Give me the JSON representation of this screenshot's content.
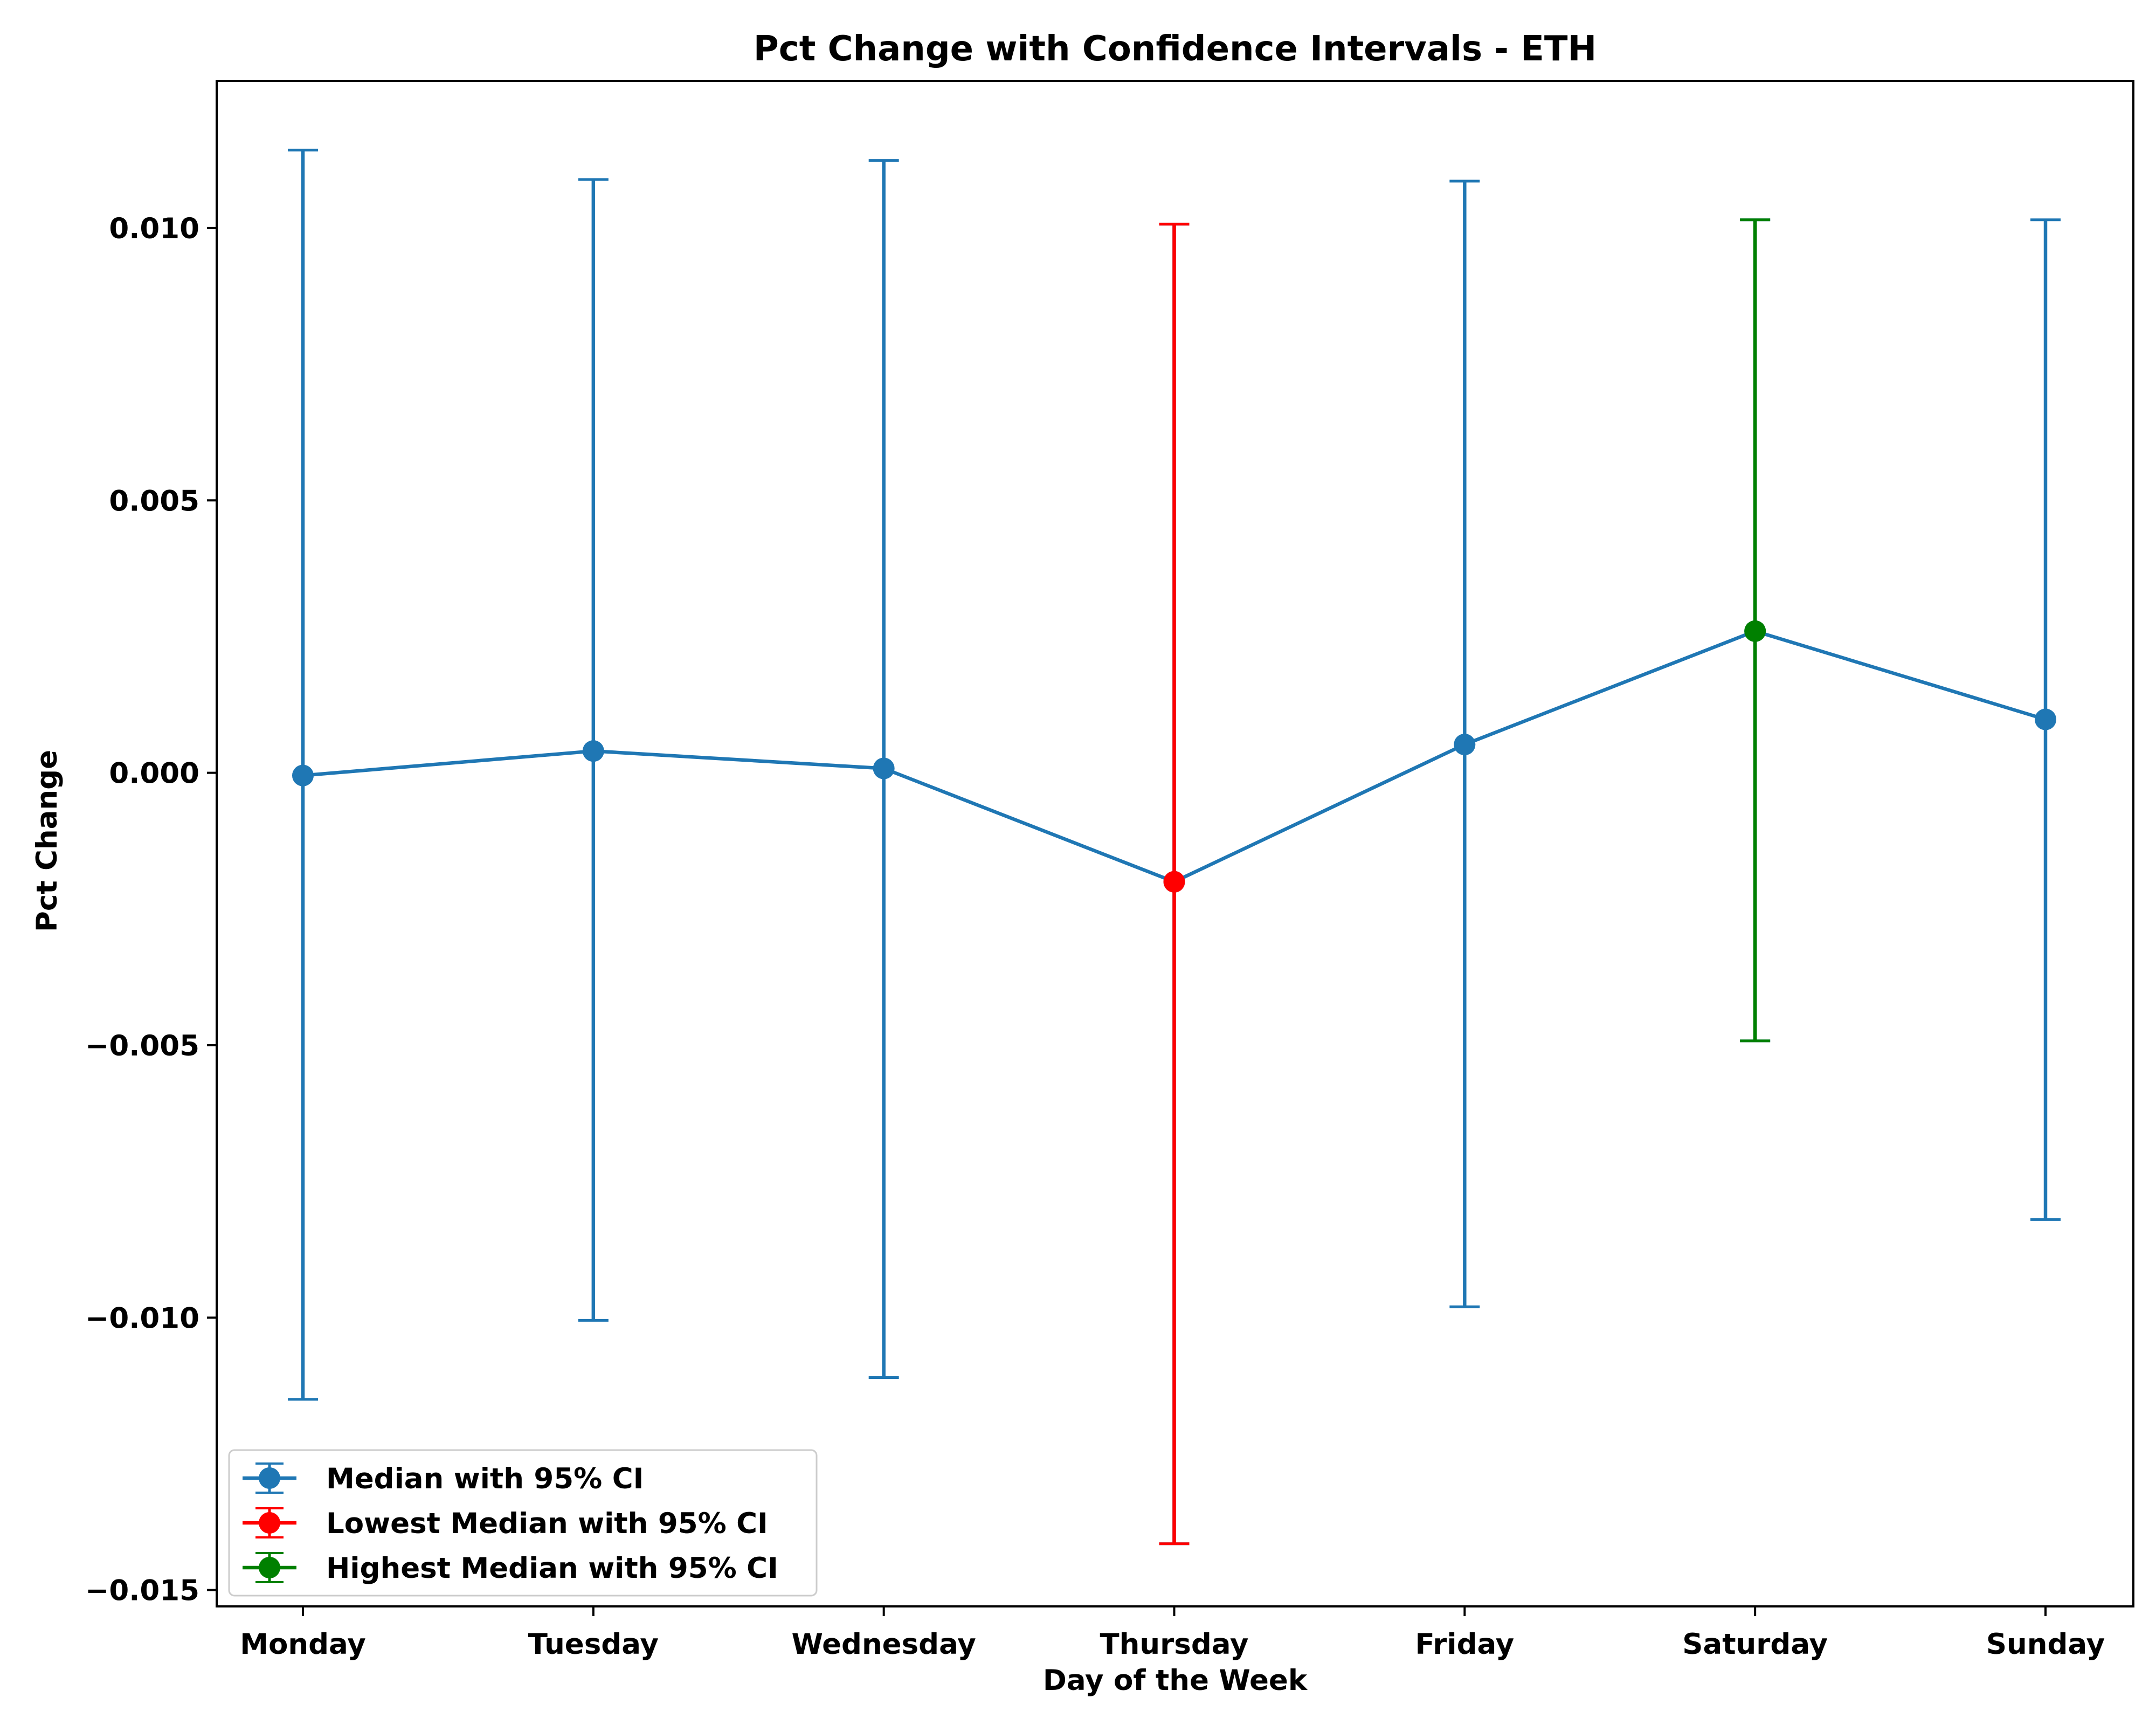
{
  "chart_data": {
    "type": "line",
    "title": "Pct Change with Confidence Intervals - ETH",
    "xlabel": "Day of the Week",
    "ylabel": "Pct Change",
    "categories": [
      "Monday",
      "Tuesday",
      "Wednesday",
      "Thursday",
      "Friday",
      "Saturday",
      "Sunday"
    ],
    "ylim": [
      -0.0153,
      0.0127
    ],
    "yticks": [
      -0.015,
      -0.01,
      -0.005,
      0.0,
      0.005,
      0.01
    ],
    "ytick_labels": [
      "−0.015",
      "−0.010",
      "−0.005",
      "0.000",
      "0.005",
      "0.010"
    ],
    "grid": false,
    "legend_position": "lower-left",
    "series": [
      {
        "name": "Median with 95% CI",
        "color": "#1f77b4",
        "values": [
          -5e-05,
          0.0004,
          8e-05,
          -0.002,
          0.00052,
          0.0026,
          0.00098
        ],
        "ci_low": [
          -0.0115,
          -0.01005,
          -0.0111,
          -0.01415,
          -0.0098,
          -0.00492,
          -0.0082
        ],
        "ci_high": [
          0.01143,
          0.01089,
          0.01124,
          0.01007,
          0.01086,
          0.01015,
          0.01015
        ]
      },
      {
        "name": "Lowest Median with 95% CI",
        "color": "#ff0000",
        "category": "Thursday",
        "value": -0.002,
        "ci_low": -0.01415,
        "ci_high": 0.01007
      },
      {
        "name": "Highest Median with 95% CI",
        "color": "#008000",
        "category": "Saturday",
        "value": 0.0026,
        "ci_low": -0.00492,
        "ci_high": 0.01015
      }
    ]
  }
}
